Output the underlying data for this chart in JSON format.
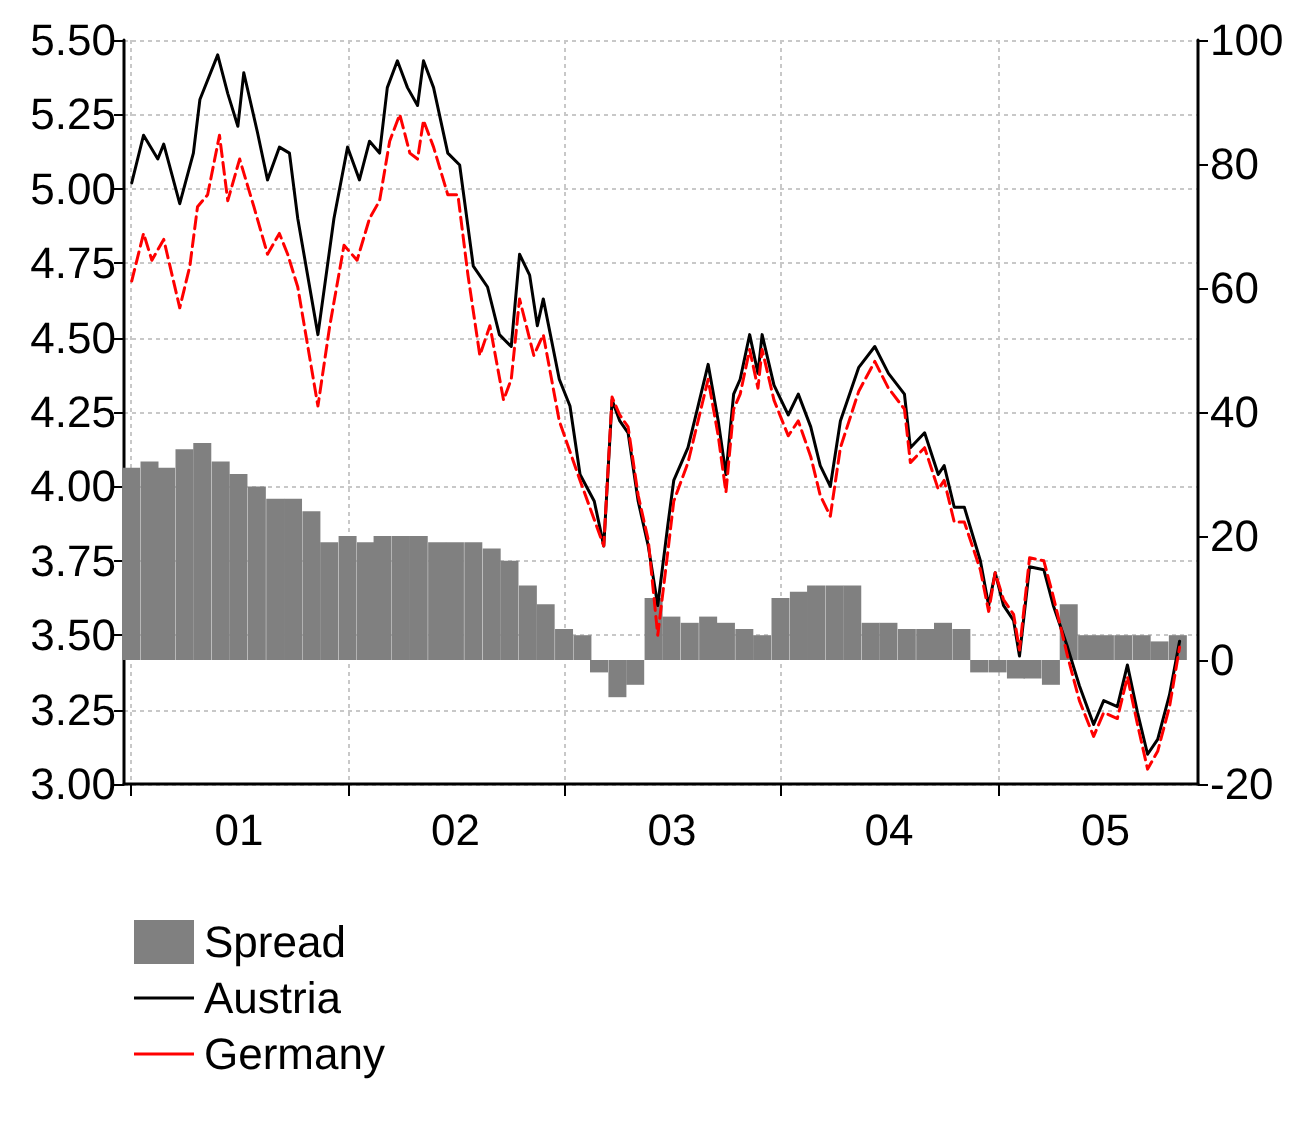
{
  "chart_data": {
    "type": "line",
    "xlim": [
      "2000-12-20",
      "2005-12-05"
    ],
    "xticks": [
      {
        "value": "2001-01-01",
        "label": null
      },
      {
        "value": "2001-07-02",
        "label": "01"
      },
      {
        "value": "2002-01-01",
        "label": null
      },
      {
        "value": "2002-07-02",
        "label": "02"
      },
      {
        "value": "2003-01-01",
        "label": null
      },
      {
        "value": "2003-07-02",
        "label": "03"
      },
      {
        "value": "2004-01-01",
        "label": null
      },
      {
        "value": "2004-07-02",
        "label": "04"
      },
      {
        "value": "2005-01-01",
        "label": null
      },
      {
        "value": "2005-07-02",
        "label": "05"
      }
    ],
    "ylim": [
      3.0,
      5.5
    ],
    "yticks": [
      {
        "value": 3.0,
        "label": "3.00"
      },
      {
        "value": 3.25,
        "label": "3.25"
      },
      {
        "value": 3.5,
        "label": "3.50"
      },
      {
        "value": 3.75,
        "label": "3.75"
      },
      {
        "value": 4.0,
        "label": "4.00"
      },
      {
        "value": 4.25,
        "label": "4.25"
      },
      {
        "value": 4.5,
        "label": "4.50"
      },
      {
        "value": 4.75,
        "label": "4.75"
      },
      {
        "value": 5.0,
        "label": "5.00"
      },
      {
        "value": 5.25,
        "label": "5.25"
      },
      {
        "value": 5.5,
        "label": "5.50"
      }
    ],
    "y2lim": [
      -20,
      100
    ],
    "y2ticks": [
      -20,
      0,
      20,
      40,
      60,
      80,
      100
    ],
    "grid": true,
    "legend": "bottom left",
    "series": [
      {
        "name": "Spread",
        "type": "bar",
        "axis": "y2",
        "color": "#808080",
        "x": [
          "2001-01",
          "2001-02",
          "2001-03",
          "2001-04",
          "2001-05",
          "2001-06",
          "2001-07",
          "2001-08",
          "2001-09",
          "2001-10",
          "2001-11",
          "2001-12",
          "2002-01",
          "2002-02",
          "2002-03",
          "2002-04",
          "2002-05",
          "2002-06",
          "2002-07",
          "2002-08",
          "2002-09",
          "2002-10",
          "2002-11",
          "2002-12",
          "2003-01",
          "2003-02",
          "2003-03",
          "2003-04",
          "2003-05",
          "2003-06",
          "2003-07",
          "2003-08",
          "2003-09",
          "2003-10",
          "2003-11",
          "2003-12",
          "2004-01",
          "2004-02",
          "2004-03",
          "2004-04",
          "2004-05",
          "2004-06",
          "2004-07",
          "2004-08",
          "2004-09",
          "2004-10",
          "2004-11",
          "2004-12",
          "2005-01",
          "2005-02",
          "2005-03",
          "2005-04",
          "2005-05",
          "2005-06",
          "2005-07",
          "2005-08",
          "2005-09",
          "2005-10",
          "2005-11"
        ],
        "values": [
          31,
          32,
          31,
          34,
          35,
          32,
          30,
          28,
          26,
          26,
          24,
          19,
          20,
          19,
          20,
          20,
          20,
          19,
          19,
          19,
          18,
          16,
          12,
          9,
          5,
          4,
          -2,
          -6,
          -4,
          10,
          7,
          6,
          7,
          6,
          5,
          4,
          10,
          11,
          12,
          12,
          12,
          6,
          6,
          5,
          5,
          6,
          5,
          -2,
          -2,
          -3,
          -3,
          -4,
          9,
          4,
          4,
          4,
          4,
          3,
          4
        ]
      },
      {
        "name": "Austria",
        "color": "#000000",
        "line_style": "solid",
        "x": [
          "2001-01-02",
          "2001-01-22",
          "2001-02-15",
          "2001-02-25",
          "2001-03-24",
          "2001-04-16",
          "2001-04-27",
          "2001-05-27",
          "2001-06-13",
          "2001-06-30",
          "2001-07-10",
          "2001-08-02",
          "2001-08-19",
          "2001-09-08",
          "2001-09-25",
          "2001-10-09",
          "2001-11-12",
          "2001-12-09",
          "2002-01-01",
          "2002-01-21",
          "2002-02-07",
          "2002-02-24",
          "2002-03-09",
          "2002-03-26",
          "2002-04-12",
          "2002-04-29",
          "2002-05-09",
          "2002-05-26",
          "2002-06-19",
          "2002-07-09",
          "2002-08-01",
          "2002-08-25",
          "2002-09-14",
          "2002-10-04",
          "2002-10-18",
          "2002-11-04",
          "2002-11-17",
          "2002-11-27",
          "2002-12-24",
          "2003-01-11",
          "2003-01-28",
          "2003-02-21",
          "2003-03-09",
          "2003-03-23",
          "2003-04-05",
          "2003-04-19",
          "2003-05-06",
          "2003-05-23",
          "2003-06-08",
          "2003-06-25",
          "2003-07-05",
          "2003-07-29",
          "2003-08-15",
          "2003-09-01",
          "2003-09-18",
          "2003-10-01",
          "2003-10-14",
          "2003-10-25",
          "2003-11-10",
          "2003-11-24",
          "2003-12-01",
          "2003-12-21",
          "2004-01-14",
          "2004-01-31",
          "2004-02-21",
          "2004-03-08",
          "2004-03-25",
          "2004-04-11",
          "2004-05-12",
          "2004-06-08",
          "2004-07-01",
          "2004-07-28",
          "2004-08-07",
          "2004-08-31",
          "2004-09-23",
          "2004-10-03",
          "2004-10-20",
          "2004-11-06",
          "2004-12-03",
          "2004-12-17",
          "2004-12-28",
          "2005-01-11",
          "2005-01-28",
          "2005-02-07",
          "2005-02-24",
          "2005-03-20",
          "2005-04-05",
          "2005-04-29",
          "2005-05-19",
          "2005-06-12",
          "2005-06-29",
          "2005-07-22",
          "2005-08-08",
          "2005-08-25",
          "2005-09-11",
          "2005-09-28",
          "2005-10-18",
          "2005-11-04"
        ],
        "values": [
          5.02,
          5.18,
          5.1,
          5.15,
          4.95,
          5.12,
          5.3,
          5.45,
          5.32,
          5.21,
          5.39,
          5.19,
          5.03,
          5.14,
          5.12,
          4.9,
          4.51,
          4.9,
          5.14,
          5.03,
          5.16,
          5.12,
          5.34,
          5.43,
          5.34,
          5.28,
          5.43,
          5.34,
          5.12,
          5.08,
          4.74,
          4.67,
          4.51,
          4.47,
          4.78,
          4.71,
          4.54,
          4.63,
          4.36,
          4.27,
          4.04,
          3.95,
          3.8,
          4.29,
          4.22,
          4.18,
          3.95,
          3.8,
          3.6,
          3.87,
          4.02,
          4.13,
          4.27,
          4.41,
          4.22,
          4.04,
          4.31,
          4.36,
          4.51,
          4.38,
          4.51,
          4.34,
          4.24,
          4.31,
          4.2,
          4.07,
          4.0,
          4.22,
          4.4,
          4.47,
          4.38,
          4.31,
          4.13,
          4.18,
          4.04,
          4.07,
          3.93,
          3.93,
          3.75,
          3.6,
          3.71,
          3.6,
          3.55,
          3.43,
          3.73,
          3.72,
          3.6,
          3.46,
          3.33,
          3.2,
          3.28,
          3.26,
          3.4,
          3.24,
          3.1,
          3.15,
          3.3,
          3.48
        ]
      },
      {
        "name": "Germany",
        "color": "#ff0000",
        "line_style": "dashed",
        "x": [
          "2001-01-02",
          "2001-01-22",
          "2001-02-05",
          "2001-02-25",
          "2001-03-24",
          "2001-04-10",
          "2001-04-23",
          "2001-05-10",
          "2001-05-30",
          "2001-06-13",
          "2001-07-03",
          "2001-07-27",
          "2001-08-19",
          "2001-09-08",
          "2001-09-22",
          "2001-10-09",
          "2001-11-12",
          "2001-12-02",
          "2001-12-26",
          "2002-01-17",
          "2002-02-07",
          "2002-02-24",
          "2002-03-13",
          "2002-03-30",
          "2002-04-16",
          "2002-04-29",
          "2002-05-09",
          "2002-05-26",
          "2002-06-19",
          "2002-07-06",
          "2002-07-23",
          "2002-08-12",
          "2002-08-29",
          "2002-09-21",
          "2002-10-04",
          "2002-10-18",
          "2002-11-11",
          "2002-11-27",
          "2002-12-24",
          "2003-01-28",
          "2003-03-09",
          "2003-03-23",
          "2003-04-05",
          "2003-04-19",
          "2003-05-06",
          "2003-05-23",
          "2003-06-08",
          "2003-06-25",
          "2003-07-05",
          "2003-07-29",
          "2003-08-15",
          "2003-09-01",
          "2003-09-18",
          "2003-10-01",
          "2003-10-14",
          "2003-10-25",
          "2003-11-10",
          "2003-11-24",
          "2003-12-01",
          "2003-12-21",
          "2004-01-14",
          "2004-01-31",
          "2004-02-21",
          "2004-03-08",
          "2004-03-25",
          "2004-04-11",
          "2004-05-12",
          "2004-06-08",
          "2004-07-01",
          "2004-07-28",
          "2004-08-07",
          "2004-08-31",
          "2004-09-23",
          "2004-10-03",
          "2004-10-20",
          "2004-11-06",
          "2004-12-03",
          "2004-12-17",
          "2004-12-28",
          "2005-01-11",
          "2005-01-28",
          "2005-02-07",
          "2005-02-24",
          "2005-03-20",
          "2005-04-05",
          "2005-04-29",
          "2005-05-19",
          "2005-06-12",
          "2005-06-29",
          "2005-07-22",
          "2005-08-08",
          "2005-08-25",
          "2005-09-11",
          "2005-09-28",
          "2005-10-18",
          "2005-11-04"
        ],
        "values": [
          4.69,
          4.85,
          4.76,
          4.83,
          4.6,
          4.74,
          4.94,
          4.98,
          5.18,
          4.96,
          5.1,
          4.94,
          4.78,
          4.85,
          4.78,
          4.67,
          4.27,
          4.54,
          4.81,
          4.76,
          4.9,
          4.96,
          5.16,
          5.25,
          5.12,
          5.1,
          5.23,
          5.14,
          4.98,
          4.98,
          4.71,
          4.44,
          4.54,
          4.29,
          4.36,
          4.63,
          4.44,
          4.51,
          4.22,
          4.02,
          3.8,
          4.3,
          4.24,
          4.2,
          3.97,
          3.82,
          3.5,
          3.78,
          3.95,
          4.08,
          4.22,
          4.36,
          4.17,
          3.98,
          4.26,
          4.31,
          4.46,
          4.33,
          4.46,
          4.29,
          4.17,
          4.22,
          4.1,
          3.97,
          3.9,
          4.13,
          4.32,
          4.42,
          4.33,
          4.26,
          4.08,
          4.13,
          3.99,
          4.02,
          3.88,
          3.88,
          3.72,
          3.58,
          3.71,
          3.62,
          3.57,
          3.45,
          3.76,
          3.75,
          3.63,
          3.43,
          3.28,
          3.16,
          3.24,
          3.22,
          3.36,
          3.2,
          3.05,
          3.11,
          3.26,
          3.46
        ]
      }
    ]
  }
}
